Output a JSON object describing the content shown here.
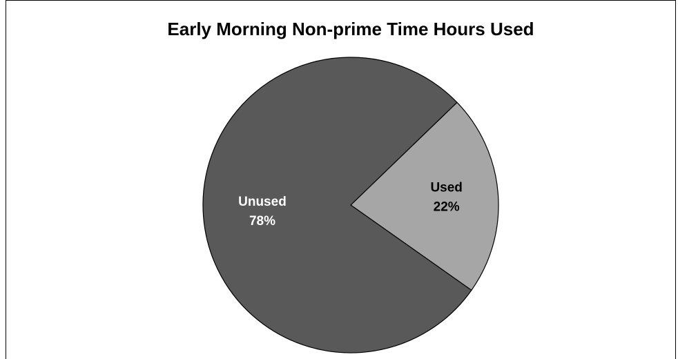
{
  "chart_data": {
    "type": "pie",
    "title": "Early Morning Non-prime Time Hours Used",
    "categories": [
      "Used",
      "Unused"
    ],
    "values": [
      22,
      78
    ],
    "value_labels": [
      "22%",
      "78%"
    ],
    "colors": [
      "#a6a6a6",
      "#595959"
    ]
  }
}
